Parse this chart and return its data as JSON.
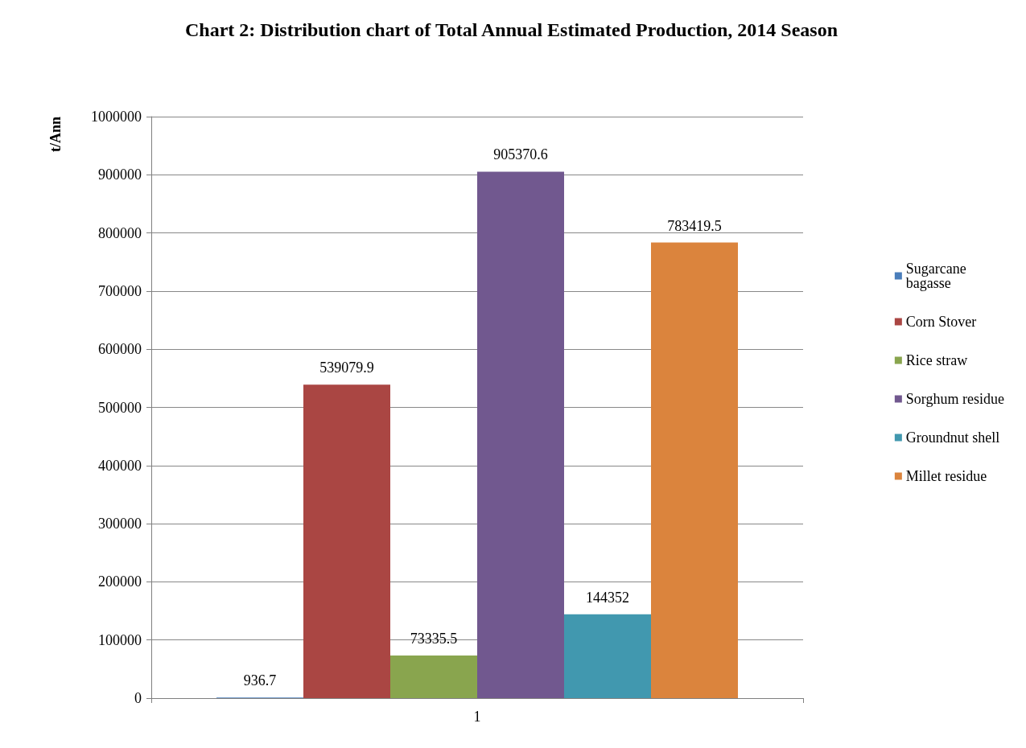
{
  "chart_data": {
    "type": "bar",
    "title": "Chart 2: Distribution chart of Total Annual Estimated Production, 2014 Season",
    "ylabel": "t/Ann",
    "categories": [
      "1"
    ],
    "series": [
      {
        "name": "Sugarcane bagasse",
        "color": "#4a7ebb",
        "values": [
          936.7
        ]
      },
      {
        "name": "Corn Stover",
        "color": "#aa4643",
        "values": [
          539079.9
        ]
      },
      {
        "name": "Rice straw",
        "color": "#89a54e",
        "values": [
          73335.5
        ]
      },
      {
        "name": "Sorghum residue",
        "color": "#71588f",
        "values": [
          905370.6
        ]
      },
      {
        "name": "Groundnut shell",
        "color": "#4198af",
        "values": [
          144352
        ]
      },
      {
        "name": "Millet residue",
        "color": "#db843d",
        "values": [
          783419.5
        ]
      }
    ],
    "ylim": [
      0,
      1000000
    ],
    "yticks": [
      0,
      100000,
      200000,
      300000,
      400000,
      500000,
      600000,
      700000,
      800000,
      900000,
      1000000
    ],
    "grid": "y",
    "legend": "right",
    "data_labels": true
  }
}
